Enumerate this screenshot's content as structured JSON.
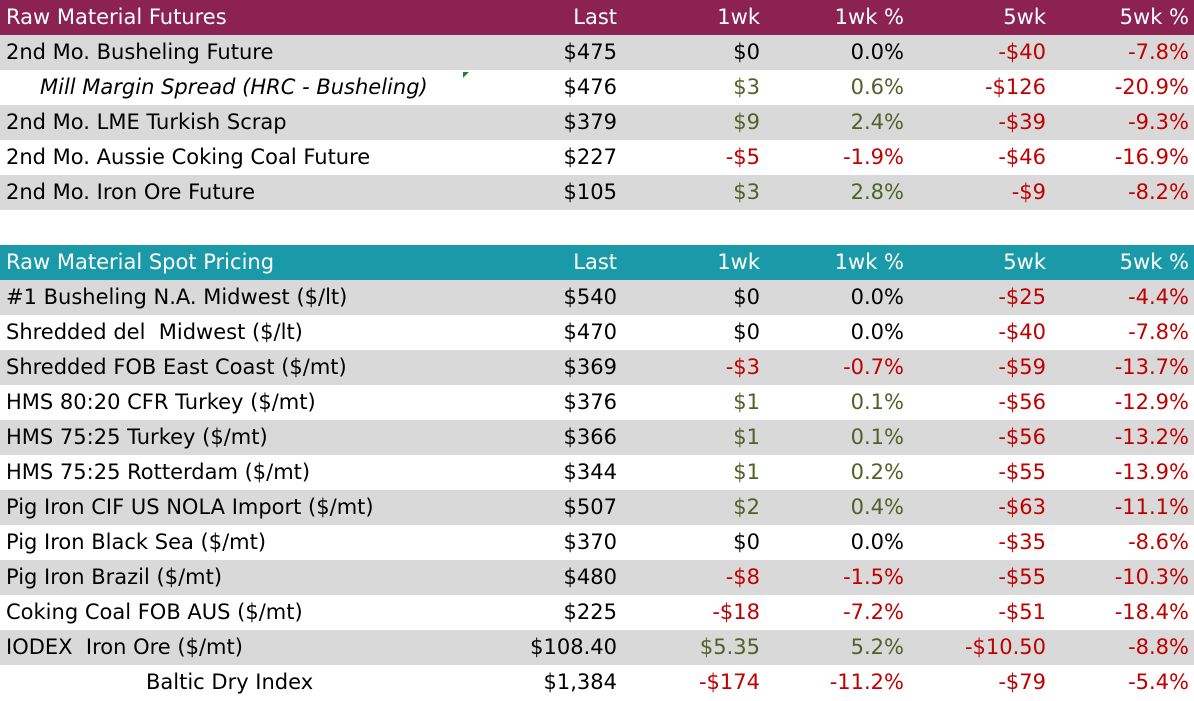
{
  "colors": {
    "futures_header": "#8b2252",
    "spot_header": "#1a9aa8",
    "positive": "#4f6228",
    "negative": "#c00000",
    "neutral": "#000000",
    "stripe": "#d9d9d9"
  },
  "futures": {
    "header": [
      "Raw Material Futures",
      "Last",
      "1wk",
      "1wk %",
      "5wk",
      "5wk %"
    ],
    "rows": [
      {
        "name": "2nd Mo. Busheling Future",
        "last": "$475",
        "wk1": "$0",
        "wk1p": "0.0%",
        "wk5": "-$40",
        "wk5p": "-7.8%"
      },
      {
        "name": "Mill Margin Spread (HRC - Busheling)",
        "last": "$476",
        "wk1": "$3",
        "wk1p": "0.6%",
        "wk5": "-$126",
        "wk5p": "-20.9%"
      },
      {
        "name": "2nd Mo. LME Turkish Scrap",
        "last": "$379",
        "wk1": "$9",
        "wk1p": "2.4%",
        "wk5": "-$39",
        "wk5p": "-9.3%"
      },
      {
        "name": "2nd Mo. Aussie Coking Coal Future",
        "last": "$227",
        "wk1": "-$5",
        "wk1p": "-1.9%",
        "wk5": "-$46",
        "wk5p": "-16.9%"
      },
      {
        "name": "2nd Mo. Iron Ore Future",
        "last": "$105",
        "wk1": "$3",
        "wk1p": "2.8%",
        "wk5": "-$9",
        "wk5p": "-8.2%"
      }
    ]
  },
  "spot": {
    "header": [
      "Raw Material Spot Pricing",
      "Last",
      "1wk",
      "1wk %",
      "5wk",
      "5wk %"
    ],
    "rows": [
      {
        "name": "#1 Busheling N.A. Midwest ($/lt)",
        "last": "$540",
        "wk1": "$0",
        "wk1p": "0.0%",
        "wk5": "-$25",
        "wk5p": "-4.4%"
      },
      {
        "name": "Shredded del  Midwest ($/lt)",
        "last": "$470",
        "wk1": "$0",
        "wk1p": "0.0%",
        "wk5": "-$40",
        "wk5p": "-7.8%"
      },
      {
        "name": "Shredded FOB East Coast ($/mt)",
        "last": "$369",
        "wk1": "-$3",
        "wk1p": "-0.7%",
        "wk5": "-$59",
        "wk5p": "-13.7%"
      },
      {
        "name": "HMS 80:20 CFR Turkey ($/mt)",
        "last": "$376",
        "wk1": "$1",
        "wk1p": "0.1%",
        "wk5": "-$56",
        "wk5p": "-12.9%"
      },
      {
        "name": "HMS 75:25 Turkey ($/mt)",
        "last": "$366",
        "wk1": "$1",
        "wk1p": "0.1%",
        "wk5": "-$56",
        "wk5p": "-13.2%"
      },
      {
        "name": "HMS 75:25 Rotterdam ($/mt)",
        "last": "$344",
        "wk1": "$1",
        "wk1p": "0.2%",
        "wk5": "-$55",
        "wk5p": "-13.9%"
      },
      {
        "name": "Pig Iron CIF US NOLA Import ($/mt)",
        "last": "$507",
        "wk1": "$2",
        "wk1p": "0.4%",
        "wk5": "-$63",
        "wk5p": "-11.1%"
      },
      {
        "name": "Pig Iron Black Sea ($/mt)",
        "last": "$370",
        "wk1": "$0",
        "wk1p": "0.0%",
        "wk5": "-$35",
        "wk5p": "-8.6%"
      },
      {
        "name": "Pig Iron Brazil ($/mt)",
        "last": "$480",
        "wk1": "-$8",
        "wk1p": "-1.5%",
        "wk5": "-$55",
        "wk5p": "-10.3%"
      },
      {
        "name": "Coking Coal FOB AUS ($/mt)",
        "last": "$225",
        "wk1": "-$18",
        "wk1p": "-7.2%",
        "wk5": "-$51",
        "wk5p": "-18.4%"
      },
      {
        "name": "IODEX  Iron Ore ($/mt)",
        "last": "$108.40",
        "wk1": "$5.35",
        "wk1p": "5.2%",
        "wk5": "-$10.50",
        "wk5p": "-8.8%"
      },
      {
        "name": "Baltic Dry Index",
        "last": "$1,384",
        "wk1": "-$174",
        "wk1p": "-11.2%",
        "wk5": "-$79",
        "wk5p": "-5.4%"
      }
    ]
  }
}
